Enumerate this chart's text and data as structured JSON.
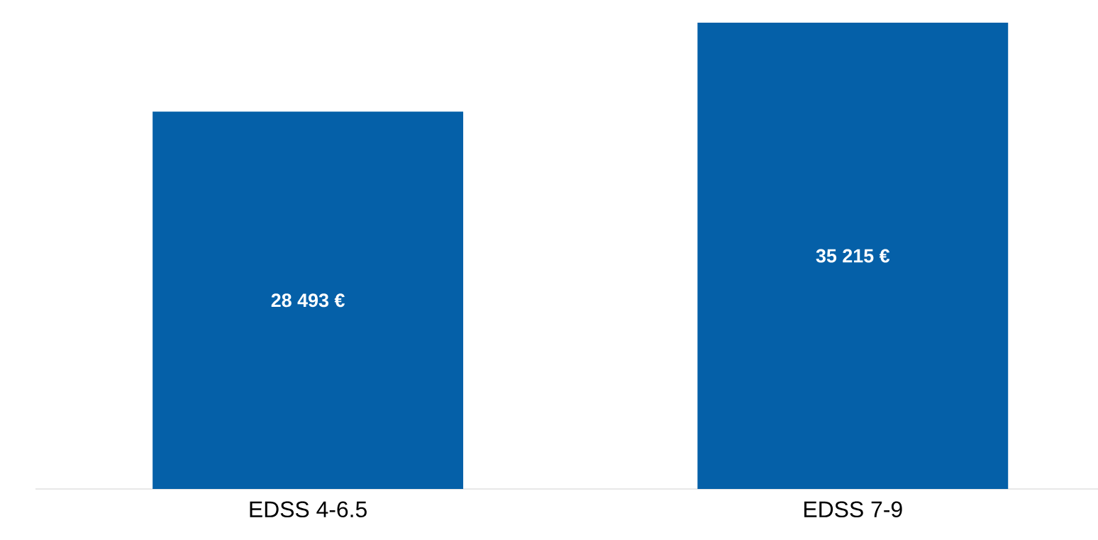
{
  "chart_data": {
    "type": "bar",
    "categories": [
      "EDSS 4-6.5",
      "EDSS 7-9"
    ],
    "values": [
      28493,
      35215
    ],
    "value_labels": [
      "28 493 €",
      "35 215 €"
    ],
    "color": "#0560a8"
  }
}
